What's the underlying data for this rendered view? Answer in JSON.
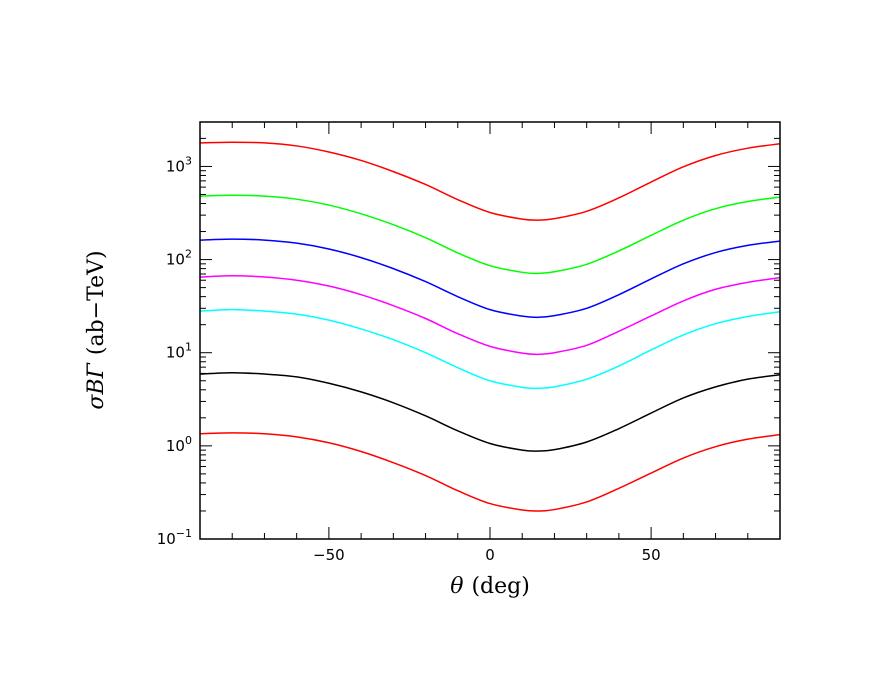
{
  "chart_data": {
    "type": "line",
    "xlabel_symbol": "θ",
    "xlabel_text": "(deg)",
    "ylabel_symbol": "σBΓ",
    "ylabel_text": "(ab−TeV)",
    "xlim": [
      -90,
      90
    ],
    "ylim": [
      0.1,
      3000
    ],
    "yscale": "log",
    "x_ticks": [
      {
        "value": -50,
        "label": "−50"
      },
      {
        "value": 0,
        "label": "0"
      },
      {
        "value": 50,
        "label": "50"
      }
    ],
    "y_ticks": [
      {
        "value": 0.1,
        "base": "10",
        "exp": "−1"
      },
      {
        "value": 1,
        "base": "10",
        "exp": "0"
      },
      {
        "value": 10,
        "base": "10",
        "exp": "1"
      },
      {
        "value": 100,
        "base": "10",
        "exp": "2"
      },
      {
        "value": 1000,
        "base": "10",
        "exp": "3"
      }
    ],
    "x": [
      -90,
      -80,
      -70,
      -60,
      -50,
      -40,
      -30,
      -20,
      -10,
      0,
      10,
      15,
      20,
      30,
      40,
      50,
      60,
      70,
      80,
      90
    ],
    "series": [
      {
        "color": "#ff0000",
        "values": [
          1790,
          1820,
          1790,
          1660,
          1430,
          1160,
          880,
          640,
          440,
          320,
          272,
          265,
          275,
          330,
          460,
          680,
          990,
          1310,
          1570,
          1750
        ]
      },
      {
        "color": "#00ff00",
        "values": [
          480,
          490,
          480,
          445,
          385,
          310,
          237,
          172,
          118,
          86,
          73,
          71,
          74,
          89,
          124,
          182,
          265,
          352,
          420,
          468
        ]
      },
      {
        "color": "#0000ff",
        "values": [
          162,
          166,
          162,
          150,
          130,
          105,
          80,
          58,
          40,
          29,
          24.7,
          24,
          25,
          30,
          42,
          62,
          90,
          119,
          142,
          158
        ]
      },
      {
        "color": "#ff00ff",
        "values": [
          65,
          67,
          65,
          60,
          52,
          42,
          32,
          23.3,
          16,
          11.7,
          9.9,
          9.6,
          10,
          12,
          17,
          24.8,
          36,
          48,
          57,
          64
        ]
      },
      {
        "color": "#00ffff",
        "values": [
          28,
          29,
          28,
          26,
          22.4,
          18,
          13.8,
          10,
          6.9,
          5,
          4.25,
          4.15,
          4.3,
          5.2,
          7.2,
          10.7,
          15.5,
          20.5,
          24.5,
          27.5
        ]
      },
      {
        "color": "#000000",
        "values": [
          5.9,
          6.1,
          5.9,
          5.5,
          4.7,
          3.8,
          2.9,
          2.1,
          1.45,
          1.06,
          0.9,
          0.88,
          0.91,
          1.1,
          1.53,
          2.25,
          3.27,
          4.3,
          5.2,
          5.8
        ]
      },
      {
        "color": "#ff0000",
        "values": [
          1.35,
          1.38,
          1.35,
          1.25,
          1.08,
          0.87,
          0.66,
          0.48,
          0.33,
          0.24,
          0.205,
          0.2,
          0.207,
          0.25,
          0.35,
          0.51,
          0.74,
          0.98,
          1.18,
          1.32
        ]
      }
    ]
  }
}
